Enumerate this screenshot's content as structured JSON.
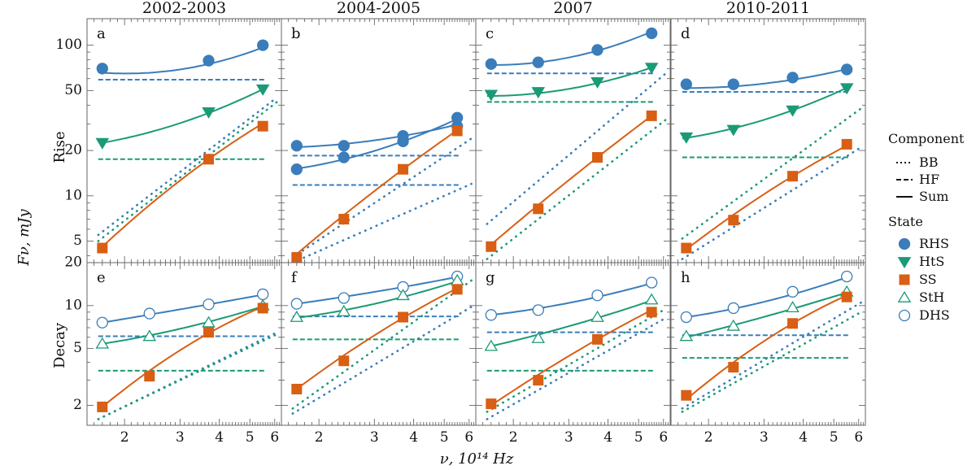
{
  "figure": {
    "row_labels": [
      "Rise",
      "Decay"
    ],
    "ylabel": "Fν, mJy",
    "xlabel": "ν, 10¹⁴ Hz"
  },
  "legend": {
    "component_title": "Component",
    "components": [
      {
        "name": "BB",
        "style": "dotted"
      },
      {
        "name": "HF",
        "style": "dashed"
      },
      {
        "name": "Sum",
        "style": "solid"
      }
    ],
    "state_title": "State",
    "states": [
      {
        "name": "RHS",
        "marker": "circle",
        "filled": true,
        "color": "#3a7dba"
      },
      {
        "name": "HtS",
        "marker": "triangle-down",
        "filled": true,
        "color": "#1a9a76"
      },
      {
        "name": "SS",
        "marker": "square",
        "filled": true,
        "color": "#d85f14"
      },
      {
        "name": "StH",
        "marker": "triangle-up",
        "filled": false,
        "color": "#1a9a76"
      },
      {
        "name": "DHS",
        "marker": "circle",
        "filled": false,
        "color": "#3a7dba"
      }
    ]
  },
  "chart_data": {
    "type": "line",
    "xscale": "log",
    "yscale": "log",
    "xlim": [
      1.52,
      6.3
    ],
    "xticks": [
      2,
      3,
      4,
      5,
      6
    ],
    "rows": [
      {
        "name": "Rise",
        "ylim": [
          3.6,
          150
        ],
        "yticks": [
          5,
          10,
          20,
          50,
          100
        ]
      },
      {
        "name": "Decay",
        "ylim": [
          1.45,
          20
        ],
        "yticks": [
          2,
          5,
          10,
          20
        ]
      }
    ],
    "columns": [
      "2002-2003",
      "2004-2005",
      "2007",
      "2010-2011"
    ],
    "panels": [
      {
        "letter": "a",
        "row": 0,
        "col": 0,
        "series": [
          {
            "state": "RHS",
            "hf": 59,
            "bb": [
              5.5,
              45
            ],
            "sum": [
              [
                1.65,
                66
              ],
              [
                3.7,
                75
              ],
              [
                5.6,
                98
              ]
            ],
            "points": [
              [
                1.7,
                70
              ],
              [
                3.7,
                79
              ],
              [
                5.5,
                100
              ]
            ]
          },
          {
            "state": "HtS",
            "hf": 17.5,
            "bb": [
              5,
              42
            ],
            "sum": [
              [
                1.7,
                22.5
              ],
              [
                3.7,
                35.5
              ],
              [
                5.6,
                52
              ]
            ],
            "points": [
              [
                1.7,
                22.5
              ],
              [
                3.7,
                36
              ],
              [
                5.5,
                51
              ]
            ]
          },
          {
            "state": "SS",
            "sum": [
              [
                1.7,
                4.6
              ],
              [
                3.7,
                17.5
              ],
              [
                5.6,
                31
              ]
            ],
            "points": [
              [
                1.7,
                4.5
              ],
              [
                3.7,
                17.5
              ],
              [
                5.5,
                29
              ]
            ]
          }
        ]
      },
      {
        "letter": "b",
        "row": 0,
        "col": 1,
        "series": [
          {
            "state": "RHS",
            "hf": 18.5,
            "bb": [
              3.9,
              24
            ],
            "sum": [
              [
                1.65,
                21
              ],
              [
                3.7,
                25
              ],
              [
                5.6,
                30
              ]
            ],
            "points": [
              [
                1.7,
                21.5
              ],
              [
                2.4,
                21.5
              ],
              [
                3.7,
                25
              ],
              [
                5.5,
                29
              ]
            ]
          },
          {
            "state": "RHS",
            "hf": 11.8,
            "bb": [
              3.6,
              12
            ],
            "sum": [
              [
                1.65,
                15
              ],
              [
                3.7,
                23
              ],
              [
                5.6,
                33
              ]
            ],
            "points": [
              [
                1.7,
                15
              ],
              [
                2.4,
                18
              ],
              [
                3.7,
                23
              ],
              [
                5.5,
                33
              ]
            ]
          },
          {
            "state": "SS",
            "sum": [
              [
                1.65,
                3.9
              ],
              [
                3.7,
                15
              ],
              [
                5.6,
                28
              ]
            ],
            "points": [
              [
                1.7,
                3.9
              ],
              [
                2.4,
                7
              ],
              [
                3.7,
                15
              ],
              [
                5.5,
                27
              ]
            ]
          }
        ]
      },
      {
        "letter": "c",
        "row": 0,
        "col": 2,
        "series": [
          {
            "state": "RHS",
            "hf": 65,
            "bb": [
              6.5,
              65
            ],
            "sum": [
              [
                1.65,
                74
              ],
              [
                3.7,
                92
              ],
              [
                5.6,
                125
              ]
            ],
            "points": [
              [
                1.7,
                75
              ],
              [
                2.4,
                77
              ],
              [
                3.7,
                93
              ],
              [
                5.5,
                120
              ]
            ]
          },
          {
            "state": "HtS",
            "hf": 42,
            "bb": [
              3.8,
              32
            ],
            "sum": [
              [
                1.65,
                46
              ],
              [
                3.7,
                56
              ],
              [
                5.6,
                72
              ]
            ],
            "points": [
              [
                1.7,
                47
              ],
              [
                2.4,
                49
              ],
              [
                3.7,
                57
              ],
              [
                5.5,
                71
              ]
            ]
          },
          {
            "state": "SS",
            "sum": [
              [
                1.65,
                4.5
              ],
              [
                3.7,
                18
              ],
              [
                5.6,
                35
              ]
            ],
            "points": [
              [
                1.7,
                4.6
              ],
              [
                2.4,
                8.2
              ],
              [
                3.7,
                18
              ],
              [
                5.5,
                34
              ]
            ]
          }
        ]
      },
      {
        "letter": "d",
        "row": 0,
        "col": 3,
        "series": [
          {
            "state": "RHS",
            "hf": 49,
            "bb": [
              3.8,
              21
            ],
            "sum": [
              [
                1.65,
                52
              ],
              [
                3.7,
                59
              ],
              [
                5.6,
                70
              ]
            ],
            "points": [
              [
                1.7,
                55
              ],
              [
                2.4,
                55
              ],
              [
                3.7,
                61
              ],
              [
                5.5,
                69
              ]
            ]
          },
          {
            "state": "HtS",
            "hf": 18,
            "bb": [
              5.2,
              38
            ],
            "sum": [
              [
                1.65,
                24
              ],
              [
                3.7,
                37
              ],
              [
                5.6,
                53
              ]
            ],
            "points": [
              [
                1.7,
                24.5
              ],
              [
                2.4,
                27.5
              ],
              [
                3.7,
                37
              ],
              [
                5.5,
                52
              ]
            ]
          },
          {
            "state": "SS",
            "sum": [
              [
                1.65,
                4.2
              ],
              [
                3.7,
                13.5
              ],
              [
                5.6,
                22
              ]
            ],
            "points": [
              [
                1.7,
                4.5
              ],
              [
                2.4,
                6.9
              ],
              [
                3.7,
                13.5
              ],
              [
                5.5,
                22
              ]
            ]
          }
        ]
      },
      {
        "letter": "e",
        "row": 1,
        "col": 0,
        "series": [
          {
            "state": "DHS",
            "hf": 6.1,
            "bb": [
              1.6,
              6.5
            ],
            "sum": [
              [
                1.7,
                7.6
              ],
              [
                3.7,
                10.2
              ],
              [
                5.6,
                12
              ]
            ],
            "points": [
              [
                1.7,
                7.6
              ],
              [
                2.4,
                8.8
              ],
              [
                3.7,
                10.2
              ],
              [
                5.5,
                12
              ]
            ]
          },
          {
            "state": "StH",
            "hf": 3.5,
            "bb": [
              1.6,
              6.3
            ],
            "sum": [
              [
                1.7,
                5.4
              ],
              [
                3.7,
                7.7
              ],
              [
                5.6,
                10
              ]
            ],
            "points": [
              [
                1.7,
                5.4
              ],
              [
                2.4,
                6.1
              ],
              [
                3.7,
                7.6
              ],
              [
                5.5,
                10
              ]
            ]
          },
          {
            "state": "SS",
            "sum": [
              [
                1.7,
                1.95
              ],
              [
                3.7,
                6.4
              ],
              [
                5.6,
                10
              ]
            ],
            "points": [
              [
                1.7,
                1.95
              ],
              [
                2.4,
                3.2
              ],
              [
                3.7,
                6.5
              ],
              [
                5.5,
                9.6
              ]
            ]
          }
        ]
      },
      {
        "letter": "f",
        "row": 1,
        "col": 1,
        "series": [
          {
            "state": "DHS",
            "hf": 8.4,
            "bb": [
              1.75,
              9.8
            ],
            "sum": [
              [
                1.7,
                10.3
              ],
              [
                3.7,
                13.5
              ],
              [
                5.6,
                16
              ]
            ],
            "points": [
              [
                1.7,
                10.3
              ],
              [
                2.4,
                11.3
              ],
              [
                3.7,
                13.5
              ],
              [
                5.5,
                16
              ]
            ]
          },
          {
            "state": "StH",
            "hf": 5.8,
            "bb": [
              1.9,
              15
            ],
            "sum": [
              [
                1.7,
                8.2
              ],
              [
                3.7,
                11.5
              ],
              [
                5.6,
                15
              ]
            ],
            "points": [
              [
                1.7,
                8.3
              ],
              [
                2.4,
                9.1
              ],
              [
                3.7,
                11.8
              ],
              [
                5.5,
                15
              ]
            ]
          },
          {
            "state": "SS",
            "sum": [
              [
                1.7,
                2.6
              ],
              [
                3.7,
                8.2
              ],
              [
                5.6,
                13.5
              ]
            ],
            "points": [
              [
                1.7,
                2.6
              ],
              [
                2.4,
                4.1
              ],
              [
                3.7,
                8.3
              ],
              [
                5.5,
                13
              ]
            ]
          }
        ]
      },
      {
        "letter": "g",
        "row": 1,
        "col": 2,
        "series": [
          {
            "state": "DHS",
            "hf": 6.5,
            "bb": [
              1.6,
              8.2
            ],
            "sum": [
              [
                1.7,
                8.6
              ],
              [
                3.7,
                11.5
              ],
              [
                5.6,
                14.5
              ]
            ],
            "points": [
              [
                1.7,
                8.6
              ],
              [
                2.4,
                9.3
              ],
              [
                3.7,
                11.8
              ],
              [
                5.5,
                14.5
              ]
            ]
          },
          {
            "state": "StH",
            "hf": 3.5,
            "bb": [
              1.8,
              9.5
            ],
            "sum": [
              [
                1.7,
                5.2
              ],
              [
                3.7,
                8.2
              ],
              [
                5.6,
                11
              ]
            ],
            "points": [
              [
                1.7,
                5.2
              ],
              [
                2.4,
                5.9
              ],
              [
                3.7,
                8.3
              ],
              [
                5.5,
                11
              ]
            ]
          },
          {
            "state": "SS",
            "sum": [
              [
                1.7,
                2.0
              ],
              [
                3.7,
                5.8
              ],
              [
                5.6,
                9.5
              ]
            ],
            "points": [
              [
                1.7,
                2.05
              ],
              [
                2.4,
                3.0
              ],
              [
                3.7,
                5.8
              ],
              [
                5.5,
                9.0
              ]
            ]
          }
        ]
      },
      {
        "letter": "h",
        "row": 1,
        "col": 3,
        "series": [
          {
            "state": "DHS",
            "hf": 6.2,
            "bb": [
              1.9,
              10.5
            ],
            "sum": [
              [
                1.7,
                8.3
              ],
              [
                3.7,
                12
              ],
              [
                5.6,
                16
              ]
            ],
            "points": [
              [
                1.7,
                8.3
              ],
              [
                2.4,
                9.6
              ],
              [
                3.7,
                12.5
              ],
              [
                5.5,
                16
              ]
            ]
          },
          {
            "state": "StH",
            "hf": 4.3,
            "bb": [
              1.8,
              9
            ],
            "sum": [
              [
                1.7,
                6.0
              ],
              [
                3.7,
                9.5
              ],
              [
                5.6,
                12.5
              ]
            ],
            "points": [
              [
                1.7,
                6.1
              ],
              [
                2.4,
                7.2
              ],
              [
                3.7,
                9.7
              ],
              [
                5.5,
                12.5
              ]
            ]
          },
          {
            "state": "SS",
            "sum": [
              [
                1.7,
                2.2
              ],
              [
                3.7,
                7.5
              ],
              [
                5.6,
                12
              ]
            ],
            "points": [
              [
                1.7,
                2.35
              ],
              [
                2.4,
                3.7
              ],
              [
                3.7,
                7.5
              ],
              [
                5.5,
                11.5
              ]
            ]
          }
        ]
      }
    ]
  }
}
